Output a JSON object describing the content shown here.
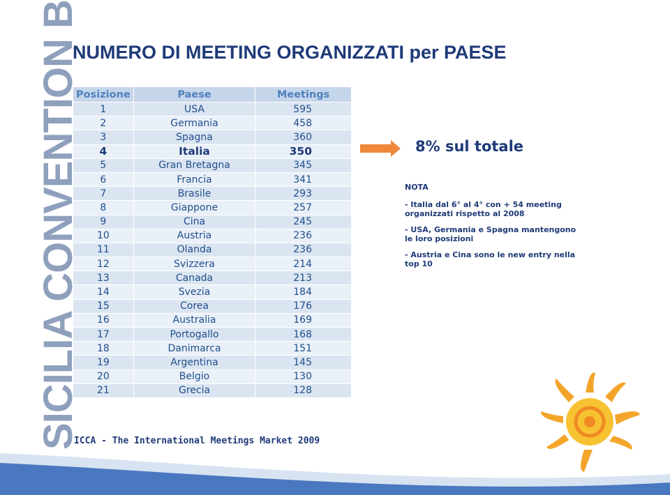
{
  "brand": "SICILIA CONVENTION BUREAU",
  "title": "NUMERO DI MEETING ORGANIZZATI per PAESE",
  "table": {
    "header": [
      "Posizione",
      "Paese",
      "Meetings"
    ],
    "rows": [
      [
        1,
        "USA",
        595
      ],
      [
        2,
        "Germania",
        458
      ],
      [
        3,
        "Spagna",
        360
      ],
      [
        4,
        "Italia",
        350
      ],
      [
        5,
        "Gran Bretagna",
        345
      ],
      [
        6,
        "Francia",
        341
      ],
      [
        7,
        "Brasile",
        293
      ],
      [
        8,
        "Giappone",
        257
      ],
      [
        9,
        "Cina",
        245
      ],
      [
        10,
        "Austria",
        236
      ],
      [
        11,
        "Olanda",
        236
      ],
      [
        12,
        "Svizzera",
        214
      ],
      [
        13,
        "Canada",
        213
      ],
      [
        14,
        "Svezia",
        184
      ],
      [
        15,
        "Corea",
        176
      ],
      [
        16,
        "Australia",
        169
      ],
      [
        17,
        "Portogallo",
        168
      ],
      [
        18,
        "Danimarca",
        151
      ],
      [
        19,
        "Argentina",
        145
      ],
      [
        20,
        "Belgio",
        130
      ],
      [
        21,
        "Grecia",
        128
      ]
    ]
  },
  "highlight": "8% sul totale",
  "note": {
    "title": "NOTA",
    "items": [
      "- Italia dal 6° al 4° con + 54 meeting organizzati rispetto al 2008",
      "- USA, Germania e Spagna mantengono le loro posizioni",
      "- Austria e Cina sono le new entry nella top 10"
    ]
  },
  "source": "ICCA - The International Meetings Market 2009"
}
